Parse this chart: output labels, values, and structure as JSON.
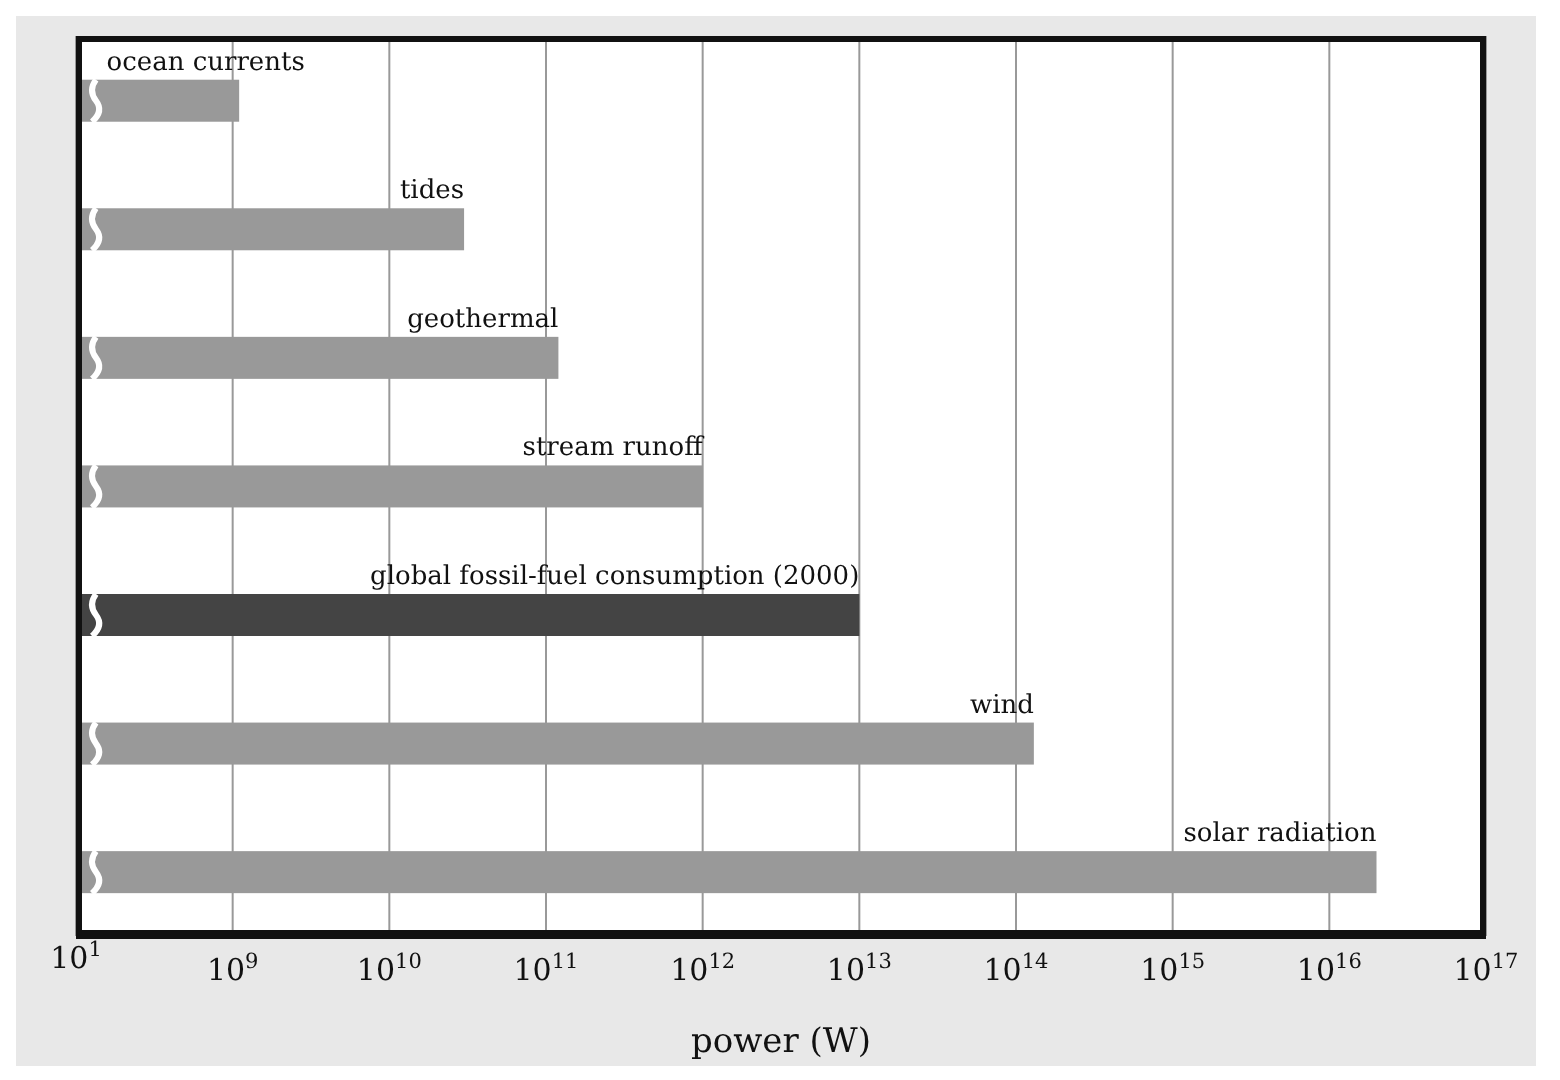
{
  "chart_data": {
    "type": "bar",
    "orientation": "horizontal",
    "categories": [
      "ocean currents",
      "tides",
      "geothermal",
      "stream runoff",
      "global fossil-fuel consumption (2000)",
      "wind",
      "solar radiation"
    ],
    "values": [
      1100000000.0,
      30000000000.0,
      120000000000.0,
      1000000000000.0,
      10000000000000.0,
      130000000000000.0,
      2e+16
    ],
    "colors": [
      "#999999",
      "#999999",
      "#999999",
      "#999999",
      "#444444",
      "#999999",
      "#999999"
    ],
    "xlabel": "power (W)",
    "log": "x",
    "xlim": [
      100000000.0,
      1e+17
    ],
    "xticks": [
      {
        "value": 1000000000.0,
        "label": "10$^{9}$"
      },
      {
        "value": 10000000000.0,
        "label": "10$^{10}$"
      },
      {
        "value": 100000000000.0,
        "label": "10$^{11}$"
      },
      {
        "value": 1000000000000.0,
        "label": "10$^{12}$"
      },
      {
        "value": 10000000000000.0,
        "label": "10$^{13}$"
      },
      {
        "value": 100000000000000.0,
        "label": "10$^{14}$"
      },
      {
        "value": 1000000000000000.0,
        "label": "10$^{15}$"
      },
      {
        "value": 1e+16,
        "label": "10$^{16}$"
      },
      {
        "value": 1e+17,
        "label": "10$^{17}$"
      }
    ],
    "annotations": [
      "10$^{1}$"
    ],
    "grid": "x",
    "tick_labels": "x"
  }
}
